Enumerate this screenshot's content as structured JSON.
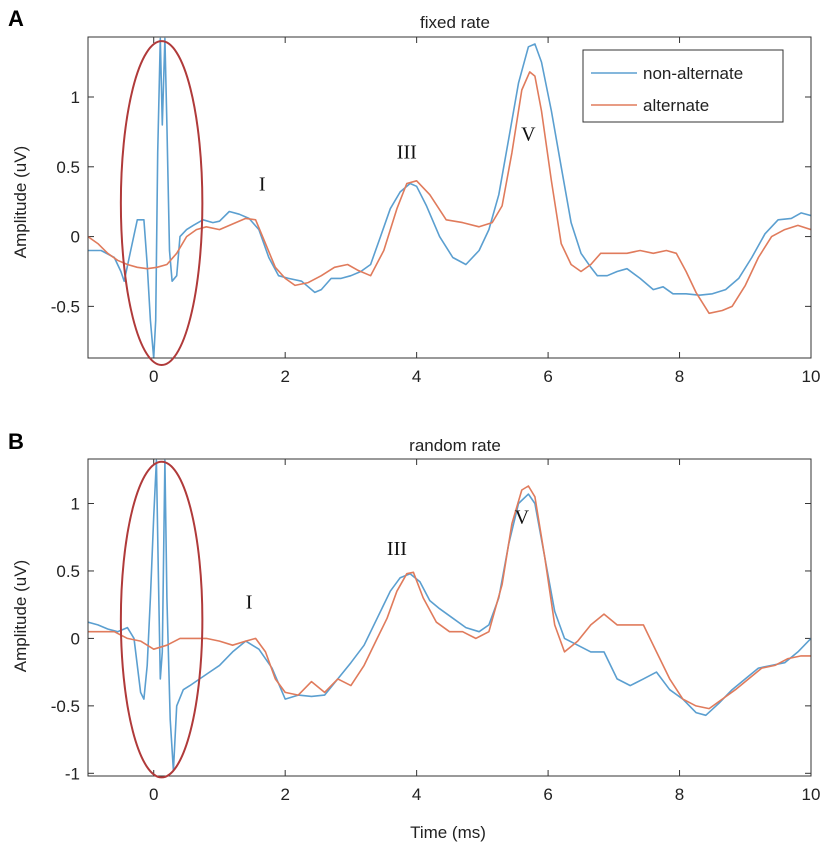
{
  "colors": {
    "non_alternate": "#5b9fd0",
    "alternate": "#e07b5c",
    "highlight_ellipse": "#b03a3a",
    "axis": "#333333"
  },
  "chart_data": [
    {
      "panel": "A",
      "type": "line",
      "title": "fixed rate",
      "xlabel": "",
      "ylabel": "Amplitude (uV)",
      "xlim": [
        -1,
        10
      ],
      "ylim": [
        -0.87,
        1.43
      ],
      "xticks": [
        0,
        2,
        4,
        6,
        8,
        10
      ],
      "yticks": [
        -0.5,
        0,
        0.5,
        1
      ],
      "ytick_labels": [
        "-0.5",
        "0",
        "0.5",
        "1"
      ],
      "legend": {
        "position": "top-right",
        "entries": [
          "non-alternate",
          "alternate"
        ]
      },
      "annotations": [
        {
          "text": "I",
          "x": 1.65,
          "y": 0.33
        },
        {
          "text": "III",
          "x": 3.85,
          "y": 0.56
        },
        {
          "text": "V",
          "x": 5.7,
          "y": 0.69
        }
      ],
      "highlight": {
        "shape": "ellipse",
        "cx": 0.12,
        "cy": 0.24,
        "rx": 0.62,
        "ry": 1.16
      },
      "series": [
        {
          "name": "non-alternate",
          "x": [
            -1,
            -0.8,
            -0.6,
            -0.5,
            -0.45,
            -0.35,
            -0.25,
            -0.15,
            -0.1,
            -0.05,
            0.0,
            0.03,
            0.06,
            0.1,
            0.13,
            0.17,
            0.2,
            0.24,
            0.28,
            0.35,
            0.4,
            0.5,
            0.6,
            0.75,
            0.9,
            1.0,
            1.15,
            1.3,
            1.45,
            1.6,
            1.75,
            1.9,
            2.05,
            2.25,
            2.45,
            2.55,
            2.7,
            2.85,
            3.0,
            3.15,
            3.3,
            3.45,
            3.6,
            3.75,
            3.9,
            4.0,
            4.15,
            4.35,
            4.55,
            4.75,
            4.95,
            5.1,
            5.25,
            5.4,
            5.55,
            5.7,
            5.8,
            5.9,
            6.05,
            6.2,
            6.35,
            6.5,
            6.65,
            6.75,
            6.9,
            7.05,
            7.2,
            7.4,
            7.6,
            7.75,
            7.9,
            8.1,
            8.3,
            8.5,
            8.7,
            8.9,
            9.1,
            9.3,
            9.5,
            9.7,
            9.85,
            10
          ],
          "y": [
            -0.1,
            -0.1,
            -0.15,
            -0.25,
            -0.32,
            -0.1,
            0.12,
            0.12,
            -0.2,
            -0.6,
            -0.87,
            -0.6,
            0.6,
            1.42,
            0.8,
            1.42,
            0.8,
            -0.1,
            -0.32,
            -0.28,
            0.0,
            0.05,
            0.08,
            0.12,
            0.1,
            0.11,
            0.18,
            0.16,
            0.13,
            0.05,
            -0.15,
            -0.28,
            -0.3,
            -0.32,
            -0.4,
            -0.38,
            -0.3,
            -0.3,
            -0.28,
            -0.25,
            -0.2,
            0.0,
            0.2,
            0.32,
            0.38,
            0.36,
            0.22,
            0.0,
            -0.15,
            -0.2,
            -0.1,
            0.05,
            0.3,
            0.7,
            1.1,
            1.36,
            1.38,
            1.25,
            0.9,
            0.5,
            0.1,
            -0.12,
            -0.22,
            -0.28,
            -0.28,
            -0.25,
            -0.23,
            -0.3,
            -0.38,
            -0.36,
            -0.41,
            -0.41,
            -0.42,
            -0.41,
            -0.38,
            -0.3,
            -0.15,
            0.02,
            0.12,
            0.13,
            0.17,
            0.15
          ]
        },
        {
          "name": "alternate",
          "x": [
            -1,
            -0.85,
            -0.7,
            -0.55,
            -0.4,
            -0.25,
            -0.1,
            0.05,
            0.2,
            0.35,
            0.5,
            0.65,
            0.8,
            1.0,
            1.2,
            1.4,
            1.55,
            1.7,
            1.85,
            2.0,
            2.15,
            2.35,
            2.55,
            2.75,
            2.95,
            3.1,
            3.3,
            3.5,
            3.7,
            3.85,
            4.0,
            4.2,
            4.45,
            4.7,
            4.95,
            5.15,
            5.3,
            5.45,
            5.6,
            5.72,
            5.8,
            5.9,
            6.05,
            6.2,
            6.35,
            6.5,
            6.65,
            6.8,
            7.0,
            7.2,
            7.4,
            7.6,
            7.8,
            7.95,
            8.1,
            8.25,
            8.45,
            8.65,
            8.8,
            9.0,
            9.2,
            9.4,
            9.6,
            9.8,
            10
          ],
          "y": [
            0.0,
            -0.05,
            -0.12,
            -0.17,
            -0.2,
            -0.22,
            -0.23,
            -0.22,
            -0.2,
            -0.12,
            0.0,
            0.05,
            0.07,
            0.05,
            0.09,
            0.13,
            0.12,
            -0.05,
            -0.22,
            -0.3,
            -0.35,
            -0.33,
            -0.28,
            -0.22,
            -0.2,
            -0.24,
            -0.28,
            -0.1,
            0.2,
            0.38,
            0.4,
            0.3,
            0.12,
            0.1,
            0.07,
            0.1,
            0.22,
            0.6,
            1.05,
            1.18,
            1.15,
            0.9,
            0.4,
            -0.05,
            -0.2,
            -0.25,
            -0.2,
            -0.12,
            -0.12,
            -0.12,
            -0.1,
            -0.12,
            -0.1,
            -0.12,
            -0.25,
            -0.4,
            -0.55,
            -0.53,
            -0.5,
            -0.35,
            -0.15,
            0.0,
            0.05,
            0.08,
            0.05
          ]
        }
      ]
    },
    {
      "panel": "B",
      "type": "line",
      "title": "random rate",
      "xlabel": "Time (ms)",
      "ylabel": "Amplitude (uV)",
      "xlim": [
        -1,
        10
      ],
      "ylim": [
        -1.02,
        1.33
      ],
      "xticks": [
        0,
        2,
        4,
        6,
        8,
        10
      ],
      "yticks": [
        -1,
        -0.5,
        0,
        0.5,
        1
      ],
      "ytick_labels": [
        "-1",
        "-0.5",
        "0",
        "0.5",
        "1"
      ],
      "annotations": [
        {
          "text": "I",
          "x": 1.45,
          "y": 0.22
        },
        {
          "text": "III",
          "x": 3.7,
          "y": 0.62
        },
        {
          "text": "V",
          "x": 5.6,
          "y": 0.85
        }
      ],
      "highlight": {
        "shape": "ellipse",
        "cx": 0.12,
        "cy": 0.14,
        "rx": 0.62,
        "ry": 1.17
      },
      "series": [
        {
          "name": "non-alternate",
          "x": [
            -1,
            -0.85,
            -0.7,
            -0.55,
            -0.4,
            -0.3,
            -0.2,
            -0.15,
            -0.1,
            -0.05,
            0.0,
            0.04,
            0.07,
            0.1,
            0.13,
            0.17,
            0.2,
            0.25,
            0.3,
            0.35,
            0.45,
            0.55,
            0.7,
            0.85,
            1.0,
            1.2,
            1.4,
            1.6,
            1.8,
            2.0,
            2.2,
            2.4,
            2.6,
            2.8,
            3.0,
            3.2,
            3.4,
            3.6,
            3.75,
            3.9,
            4.05,
            4.2,
            4.35,
            4.55,
            4.75,
            4.95,
            5.1,
            5.25,
            5.4,
            5.55,
            5.7,
            5.8,
            5.95,
            6.1,
            6.25,
            6.45,
            6.65,
            6.85,
            7.05,
            7.25,
            7.45,
            7.65,
            7.85,
            8.05,
            8.25,
            8.4,
            8.6,
            8.8,
            9.0,
            9.2,
            9.4,
            9.6,
            9.8,
            10
          ],
          "y": [
            0.12,
            0.1,
            0.07,
            0.05,
            0.08,
            0.0,
            -0.4,
            -0.45,
            -0.2,
            0.3,
            0.9,
            1.32,
            0.5,
            -0.3,
            -0.1,
            1.32,
            0.3,
            -0.6,
            -0.98,
            -0.5,
            -0.38,
            -0.35,
            -0.3,
            -0.25,
            -0.2,
            -0.1,
            -0.02,
            -0.08,
            -0.22,
            -0.45,
            -0.42,
            -0.43,
            -0.42,
            -0.3,
            -0.18,
            -0.05,
            0.15,
            0.35,
            0.45,
            0.48,
            0.42,
            0.28,
            0.22,
            0.15,
            0.08,
            0.05,
            0.1,
            0.3,
            0.7,
            1.0,
            1.07,
            1.0,
            0.6,
            0.2,
            0.0,
            -0.05,
            -0.1,
            -0.1,
            -0.3,
            -0.35,
            -0.3,
            -0.25,
            -0.38,
            -0.45,
            -0.55,
            -0.57,
            -0.48,
            -0.38,
            -0.3,
            -0.22,
            -0.2,
            -0.18,
            -0.1,
            0.0
          ]
        },
        {
          "name": "alternate",
          "x": [
            -1,
            -0.8,
            -0.6,
            -0.4,
            -0.2,
            0.0,
            0.2,
            0.4,
            0.6,
            0.8,
            1.0,
            1.2,
            1.4,
            1.55,
            1.7,
            1.85,
            2.0,
            2.2,
            2.4,
            2.6,
            2.8,
            3.0,
            3.2,
            3.4,
            3.55,
            3.7,
            3.85,
            3.95,
            4.1,
            4.3,
            4.5,
            4.7,
            4.9,
            5.1,
            5.3,
            5.45,
            5.6,
            5.7,
            5.8,
            5.95,
            6.1,
            6.25,
            6.45,
            6.65,
            6.85,
            7.05,
            7.25,
            7.45,
            7.65,
            7.85,
            8.05,
            8.25,
            8.45,
            8.65,
            8.85,
            9.05,
            9.25,
            9.45,
            9.65,
            9.85,
            10
          ],
          "y": [
            0.05,
            0.05,
            0.05,
            0.0,
            -0.02,
            -0.08,
            -0.05,
            0.0,
            0.0,
            0.0,
            -0.02,
            -0.05,
            -0.02,
            0.0,
            -0.1,
            -0.3,
            -0.4,
            -0.42,
            -0.32,
            -0.4,
            -0.3,
            -0.35,
            -0.2,
            0.0,
            0.15,
            0.35,
            0.48,
            0.49,
            0.3,
            0.12,
            0.05,
            0.05,
            0.0,
            0.05,
            0.4,
            0.85,
            1.1,
            1.13,
            1.05,
            0.6,
            0.1,
            -0.1,
            -0.02,
            0.1,
            0.18,
            0.1,
            0.1,
            0.1,
            -0.1,
            -0.3,
            -0.45,
            -0.5,
            -0.52,
            -0.45,
            -0.38,
            -0.3,
            -0.22,
            -0.2,
            -0.15,
            -0.13,
            -0.13
          ]
        }
      ]
    }
  ]
}
